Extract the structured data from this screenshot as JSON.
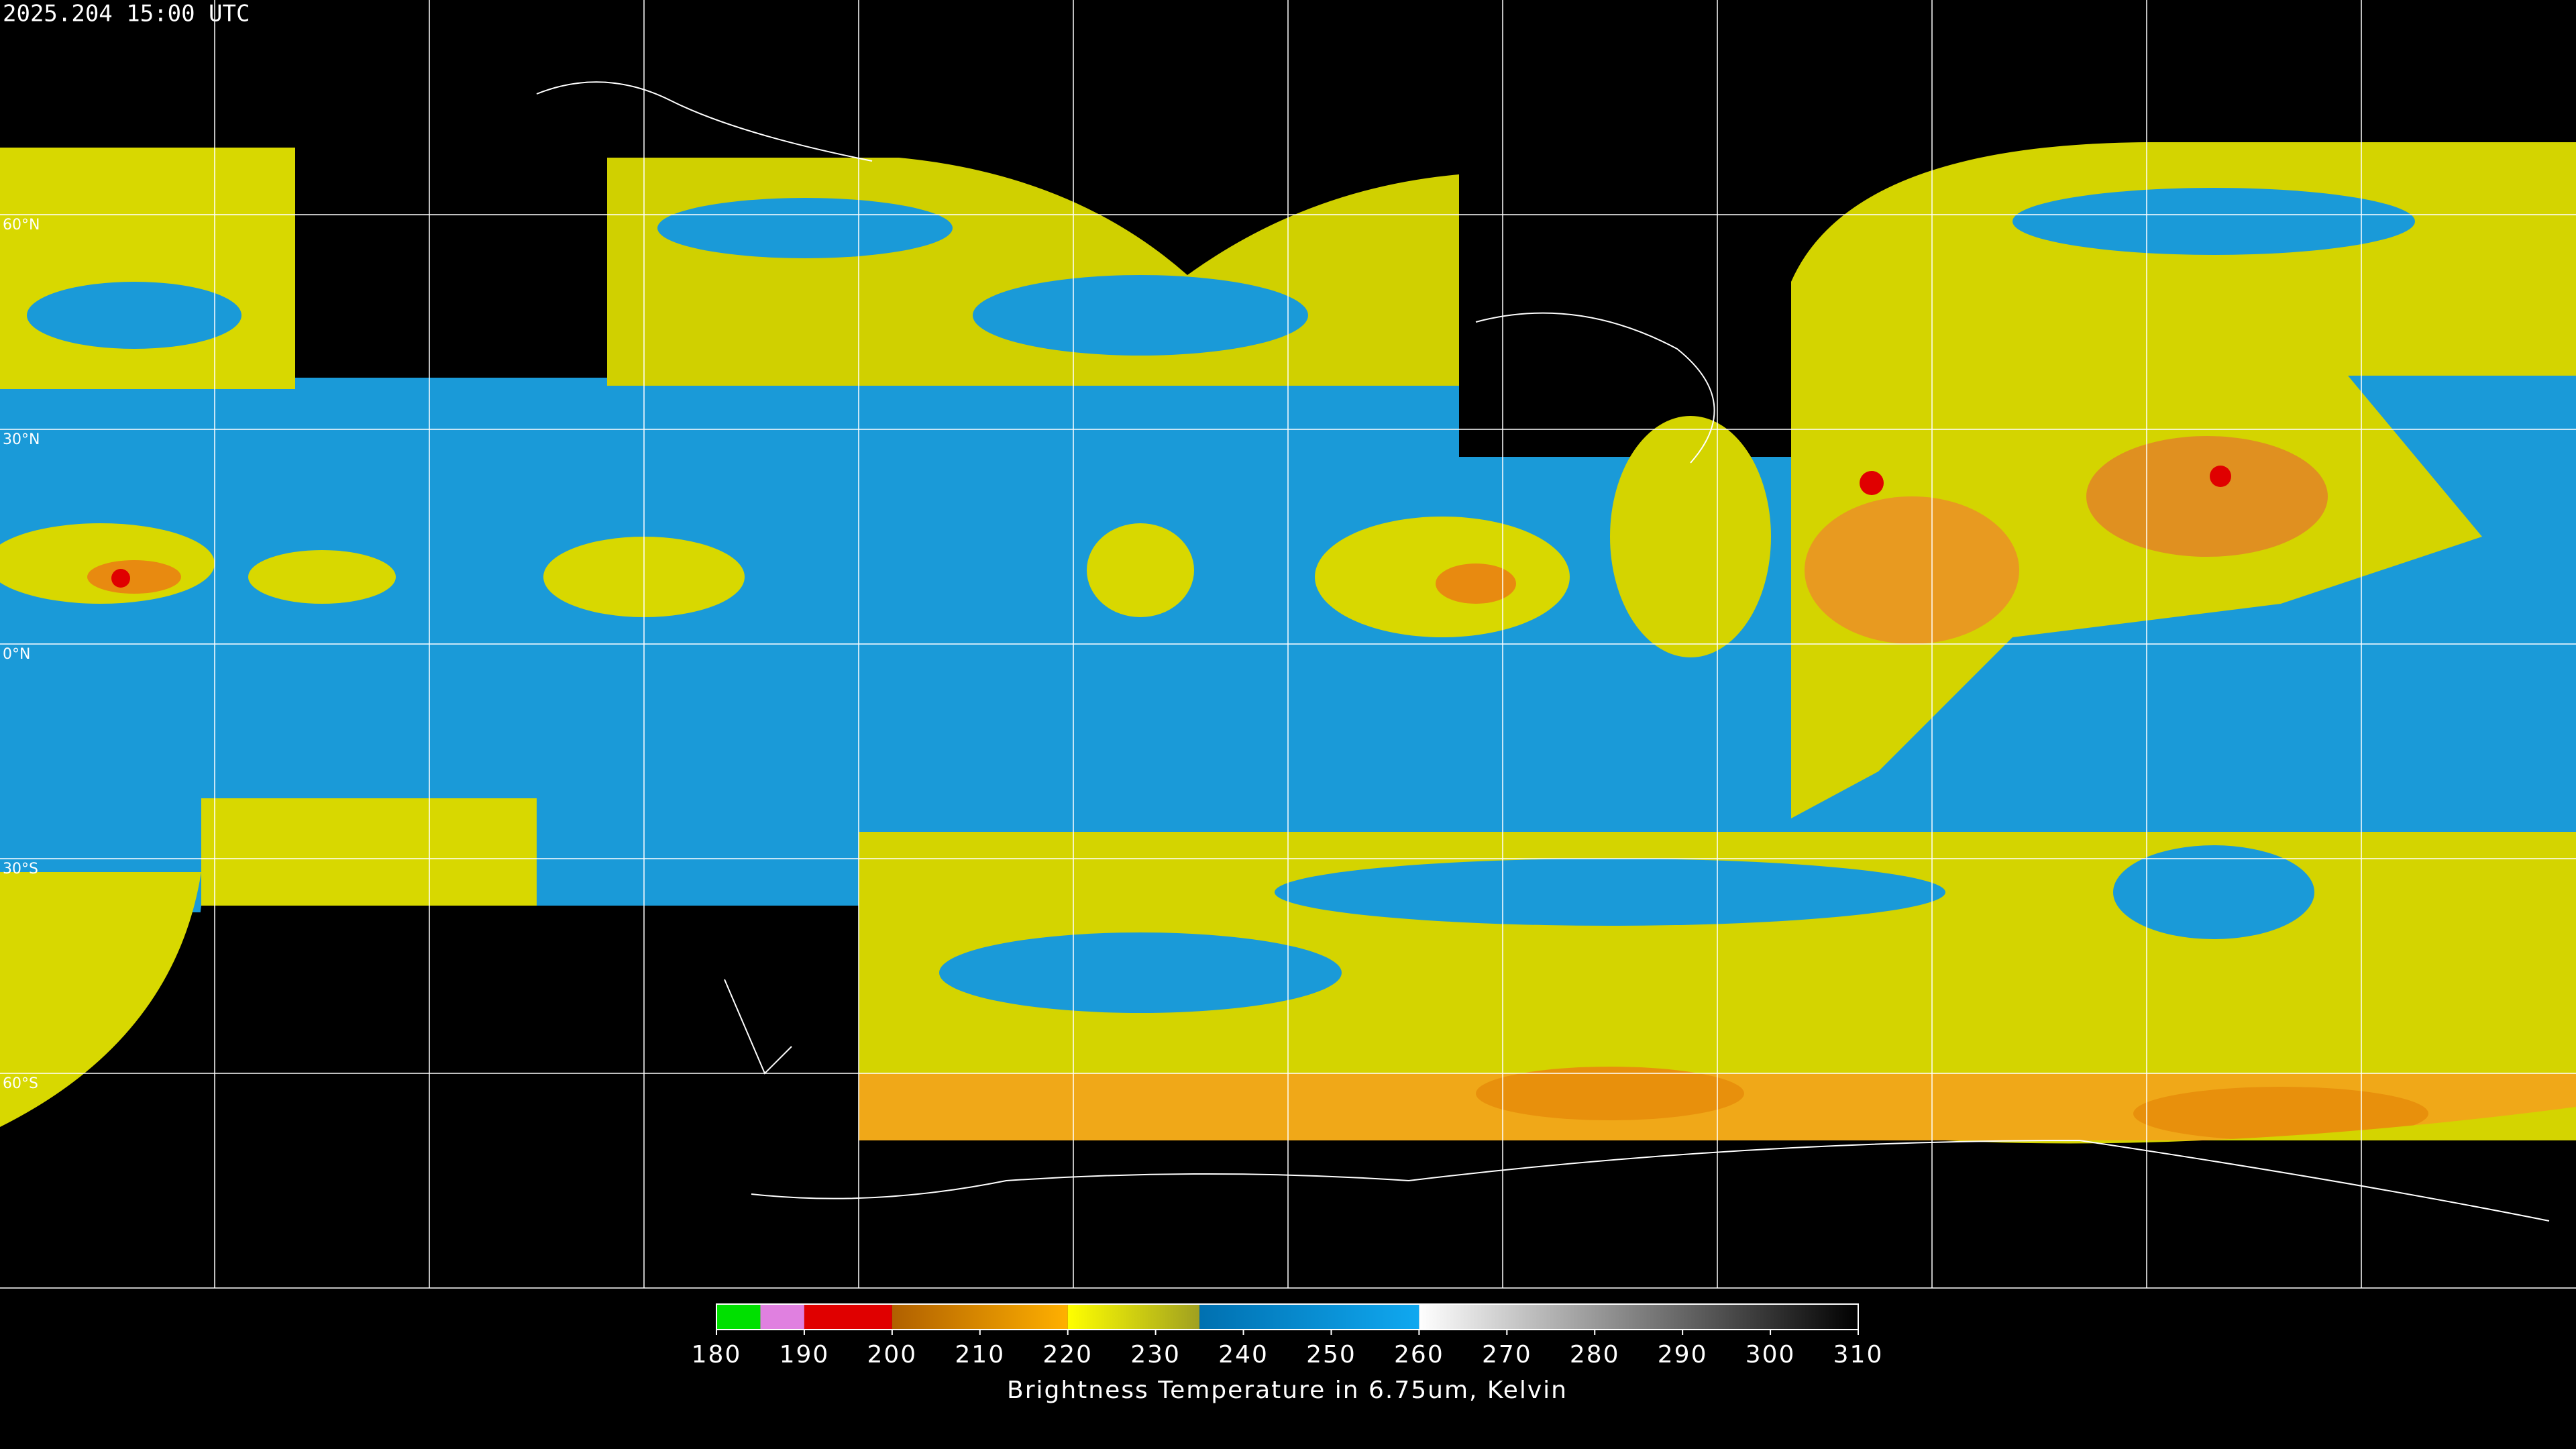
{
  "timestamp": "2025.204 15:00 UTC",
  "latitude_labels": [
    {
      "value": 60,
      "label": "60°N"
    },
    {
      "value": 30,
      "label": "30°N"
    },
    {
      "value": 0,
      "label": "0°N"
    },
    {
      "value": -30,
      "label": "30°S"
    },
    {
      "value": -60,
      "label": "60°S"
    }
  ],
  "colorbar": {
    "range": [
      180,
      310
    ],
    "ticks": [
      180,
      190,
      200,
      210,
      220,
      230,
      240,
      250,
      260,
      270,
      280,
      290,
      300,
      310
    ],
    "segments": [
      {
        "from": 180,
        "to": 185,
        "colors": [
          "#00e000",
          "#00e000"
        ]
      },
      {
        "from": 185,
        "to": 190,
        "colors": [
          "#e080e0",
          "#e080e0"
        ]
      },
      {
        "from": 190,
        "to": 200,
        "colors": [
          "#e00000",
          "#e00000"
        ]
      },
      {
        "from": 200,
        "to": 220,
        "colors": [
          "#b06000",
          "#ffb000"
        ]
      },
      {
        "from": 220,
        "to": 235,
        "colors": [
          "#ffff00",
          "#a0a020"
        ]
      },
      {
        "from": 235,
        "to": 260,
        "colors": [
          "#0070b0",
          "#10a8f0"
        ]
      },
      {
        "from": 260,
        "to": 310,
        "colors": [
          "#ffffff",
          "#000000"
        ]
      }
    ],
    "title": "Brightness Temperature in 6.75um, Kelvin"
  }
}
